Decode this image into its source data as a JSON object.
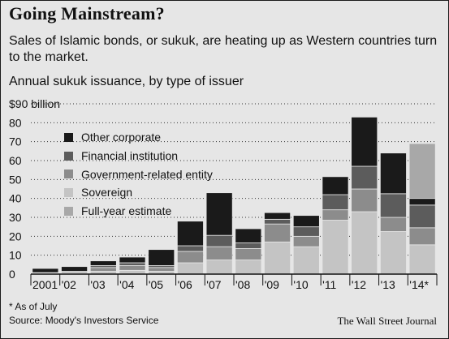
{
  "header": {
    "title": "Going Mainstream?",
    "subtitle": "Sales of Islamic bonds, or sukuk, are heating up as Western countries turn to the market.",
    "chart_label": "Annual sukuk issuance, by type of issuer"
  },
  "footer": {
    "footnote": "* As of July",
    "source": "Source: Moody's Investors Service",
    "credit": "The Wall Street Journal"
  },
  "colors": {
    "Other corporate": "#1a1a1a",
    "Financial institution": "#5c5c5c",
    "Government-related entity": "#8c8c8c",
    "Sovereign": "#c4c4c4",
    "Full-year estimate": "#a8a8a8",
    "gridline": "#333333",
    "background": "#e6e6e6"
  },
  "legend": [
    {
      "label": "Other corporate",
      "color": "#1a1a1a"
    },
    {
      "label": "Financial institution",
      "color": "#5c5c5c"
    },
    {
      "label": "Government-related entity",
      "color": "#8c8c8c"
    },
    {
      "label": "Sovereign",
      "color": "#c4c4c4"
    },
    {
      "label": "Full-year estimate",
      "color": "#a8a8a8"
    }
  ],
  "chart_data": {
    "type": "bar",
    "stacked": true,
    "title": "Annual sukuk issuance, by type of issuer",
    "ylabel": "",
    "xlabel": "",
    "ylim": [
      0,
      90
    ],
    "y_ticks": [
      0,
      10,
      20,
      30,
      40,
      50,
      60,
      70,
      80,
      90
    ],
    "y_tick_labels": [
      "0",
      "10",
      "20",
      "30",
      "40",
      "50",
      "60",
      "70",
      "80",
      "$90 billion"
    ],
    "grid": "dotted horizontal",
    "legend_position": "top-left",
    "categories": [
      "2001",
      "'02",
      "'03",
      "'04",
      "'05",
      "'06",
      "'07",
      "'08",
      "'09",
      "'10",
      "'11",
      "'12",
      "'13",
      "'14*"
    ],
    "series": [
      {
        "name": "Sovereign",
        "values": [
          0.3,
          0.5,
          1.5,
          2,
          1.5,
          6,
          7.5,
          7.5,
          17,
          14.5,
          28.5,
          33,
          22.5,
          15.5
        ]
      },
      {
        "name": "Government-related entity",
        "values": [
          0.3,
          0.5,
          2,
          2.5,
          2,
          6,
          7,
          6,
          9.5,
          5.5,
          5.5,
          12,
          7.5,
          9
        ]
      },
      {
        "name": "Financial institution",
        "values": [
          0.2,
          0.5,
          1,
          1.5,
          1,
          3,
          6,
          3,
          2.5,
          5,
          8,
          12,
          12.5,
          12
        ]
      },
      {
        "name": "Other corporate",
        "values": [
          2.2,
          2.5,
          2.5,
          3,
          8.5,
          13,
          22.5,
          7.5,
          3.5,
          6,
          9.5,
          26,
          21.5,
          3.5
        ]
      },
      {
        "name": "Full-year estimate",
        "values": [
          0,
          0,
          0,
          0,
          0,
          0,
          0,
          0,
          0,
          0,
          0,
          0,
          0,
          29
        ]
      }
    ],
    "footnote": "* As of July"
  }
}
